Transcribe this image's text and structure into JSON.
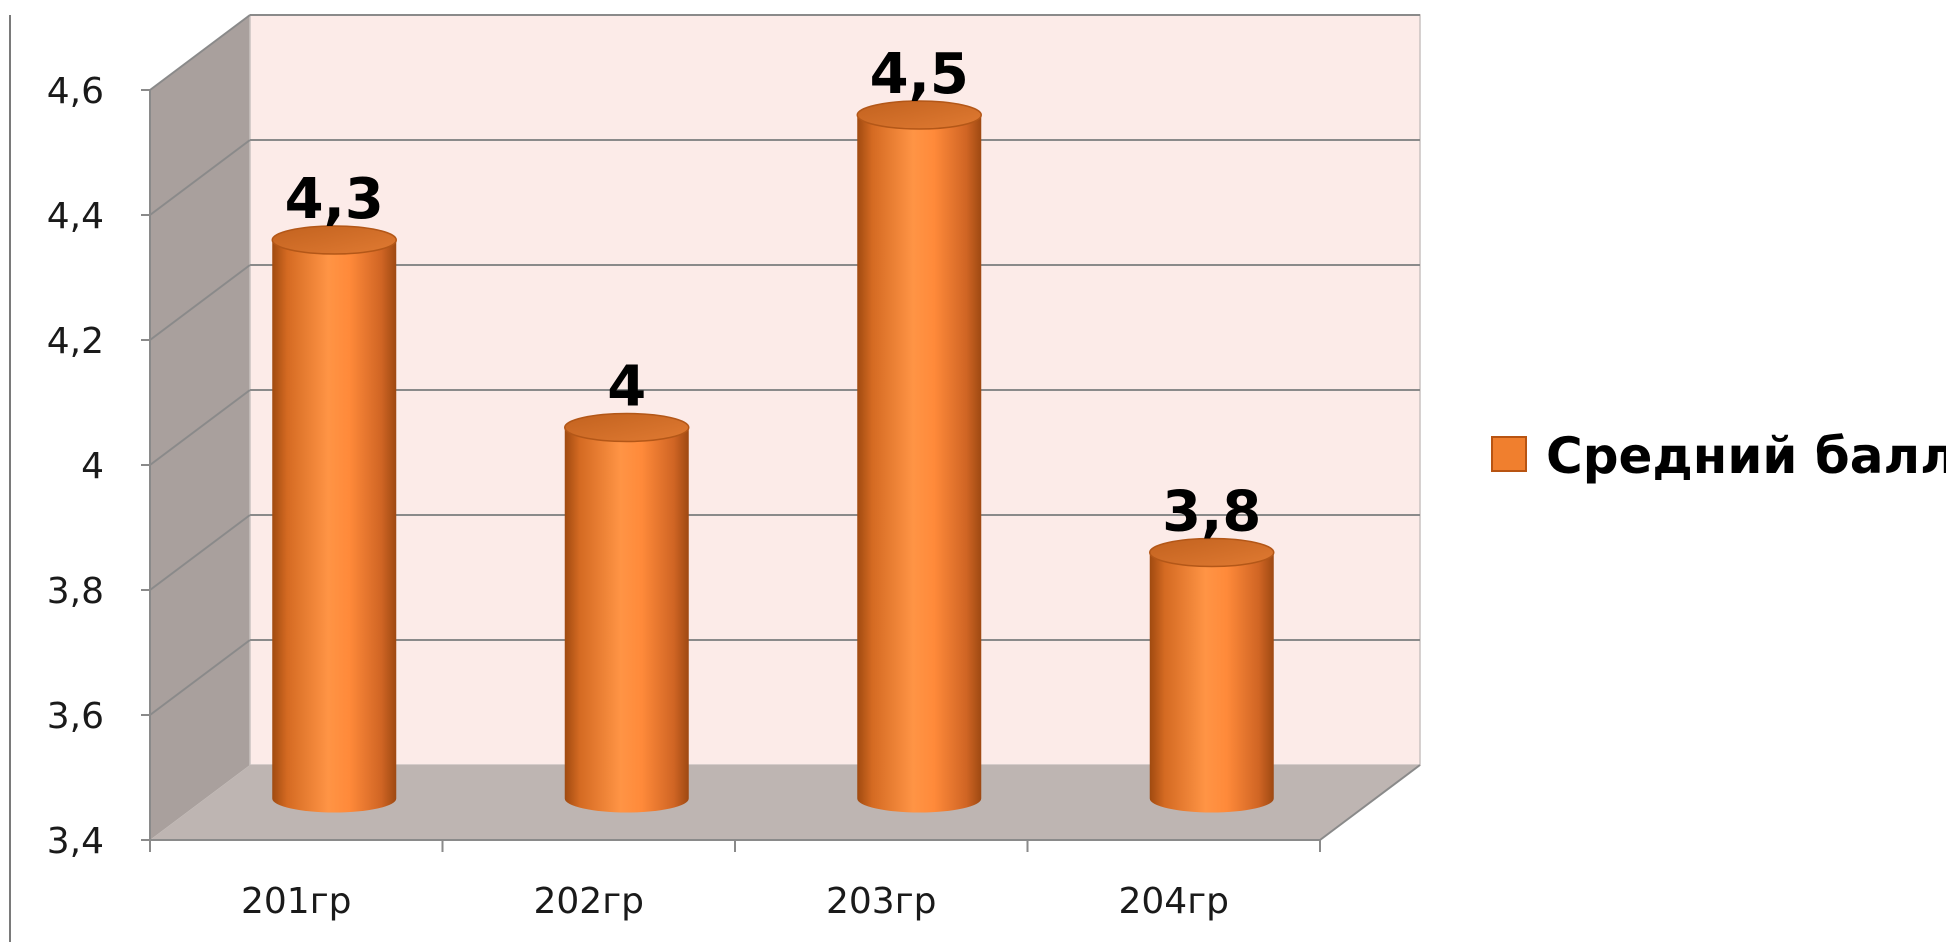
{
  "chart_data": {
    "type": "bar",
    "style": "3d-cylinder",
    "categories": [
      "201гр",
      "202гр",
      "203гр",
      "204гр"
    ],
    "series": [
      {
        "name": "Средний балл",
        "values": [
          4.3,
          4.0,
          4.5,
          3.8
        ]
      }
    ],
    "data_labels": [
      "4,3",
      "4",
      "4,5",
      "3,8"
    ],
    "ylim": [
      3.4,
      4.6
    ],
    "y_ticks": [
      3.4,
      3.6,
      3.8,
      4.0,
      4.2,
      4.4,
      4.6
    ],
    "y_tick_labels": [
      "3,4",
      "3,6",
      "3,8",
      "4",
      "4,2",
      "4,4",
      "4,6"
    ],
    "title": "",
    "xlabel": "",
    "ylabel": "",
    "grid": true,
    "legend_position": "right",
    "colors": {
      "bar": "#f07f2e",
      "bar_light": "#ffa052",
      "bar_dark": "#b85412",
      "back_wall": "#fcebe8",
      "side_wall": "#a9a09d",
      "floor": "#beb5b2",
      "gridline": "#8a8a8a"
    }
  }
}
